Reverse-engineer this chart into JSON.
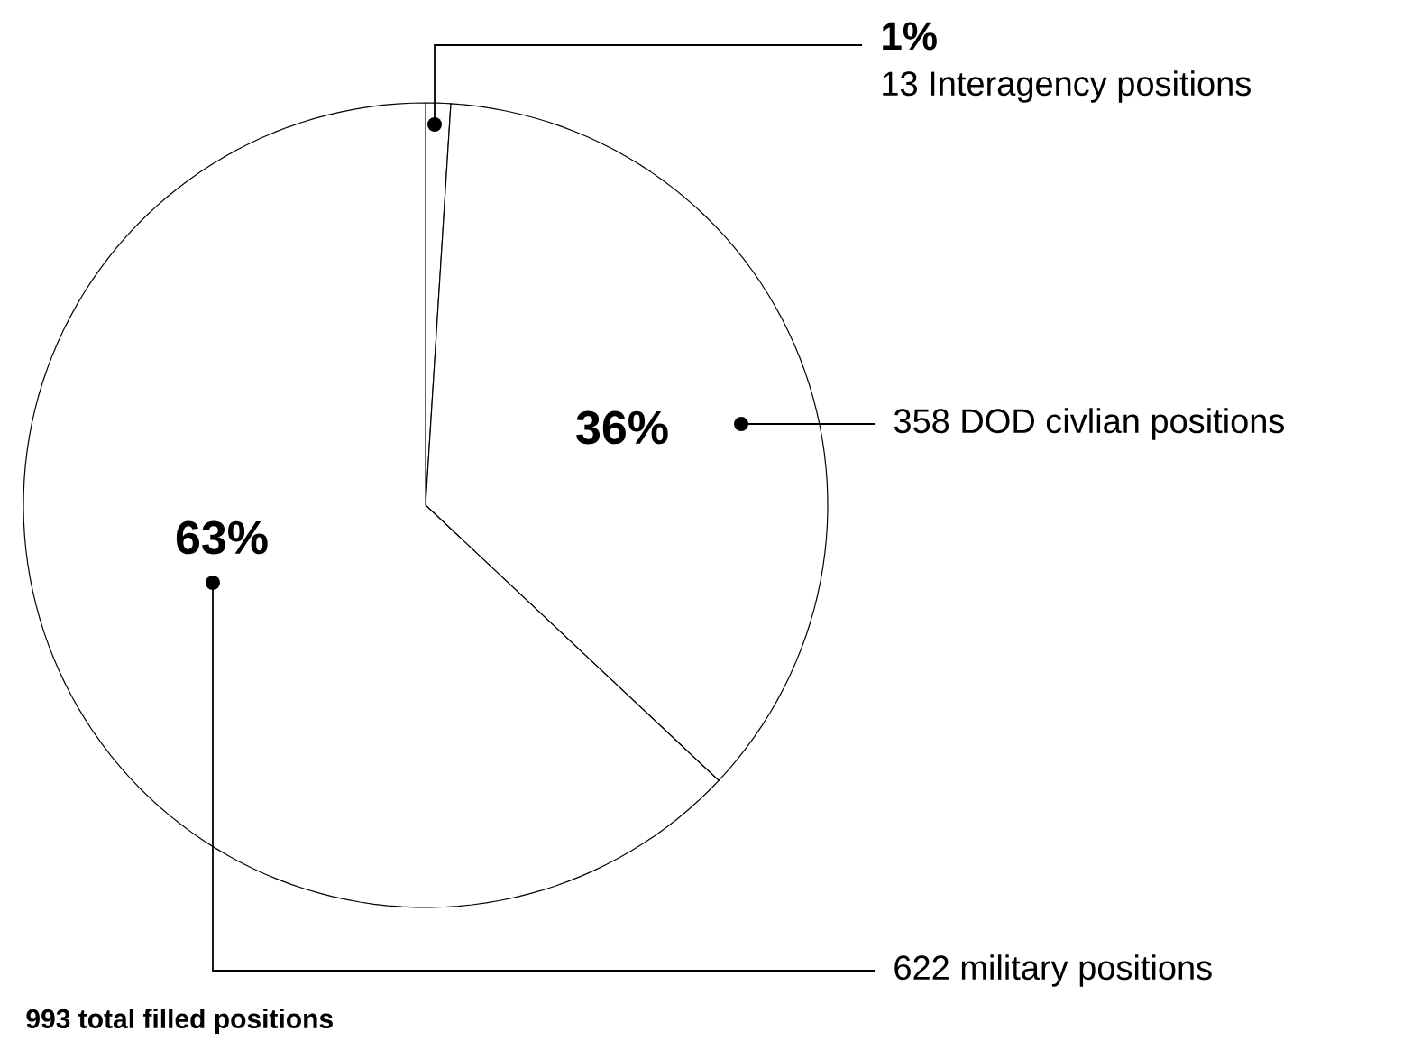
{
  "chart_data": {
    "type": "pie",
    "categories": [
      "13 Interagency positions",
      "358 DOD civlian positions",
      "622 military positions"
    ],
    "values": [
      1,
      36,
      63
    ],
    "value_labels": [
      "1%",
      "36%",
      "63%"
    ],
    "colors": [
      "#ffffff",
      "#ffffff",
      "#ffffff"
    ],
    "annotations": [
      "993 total filled positions"
    ]
  }
}
